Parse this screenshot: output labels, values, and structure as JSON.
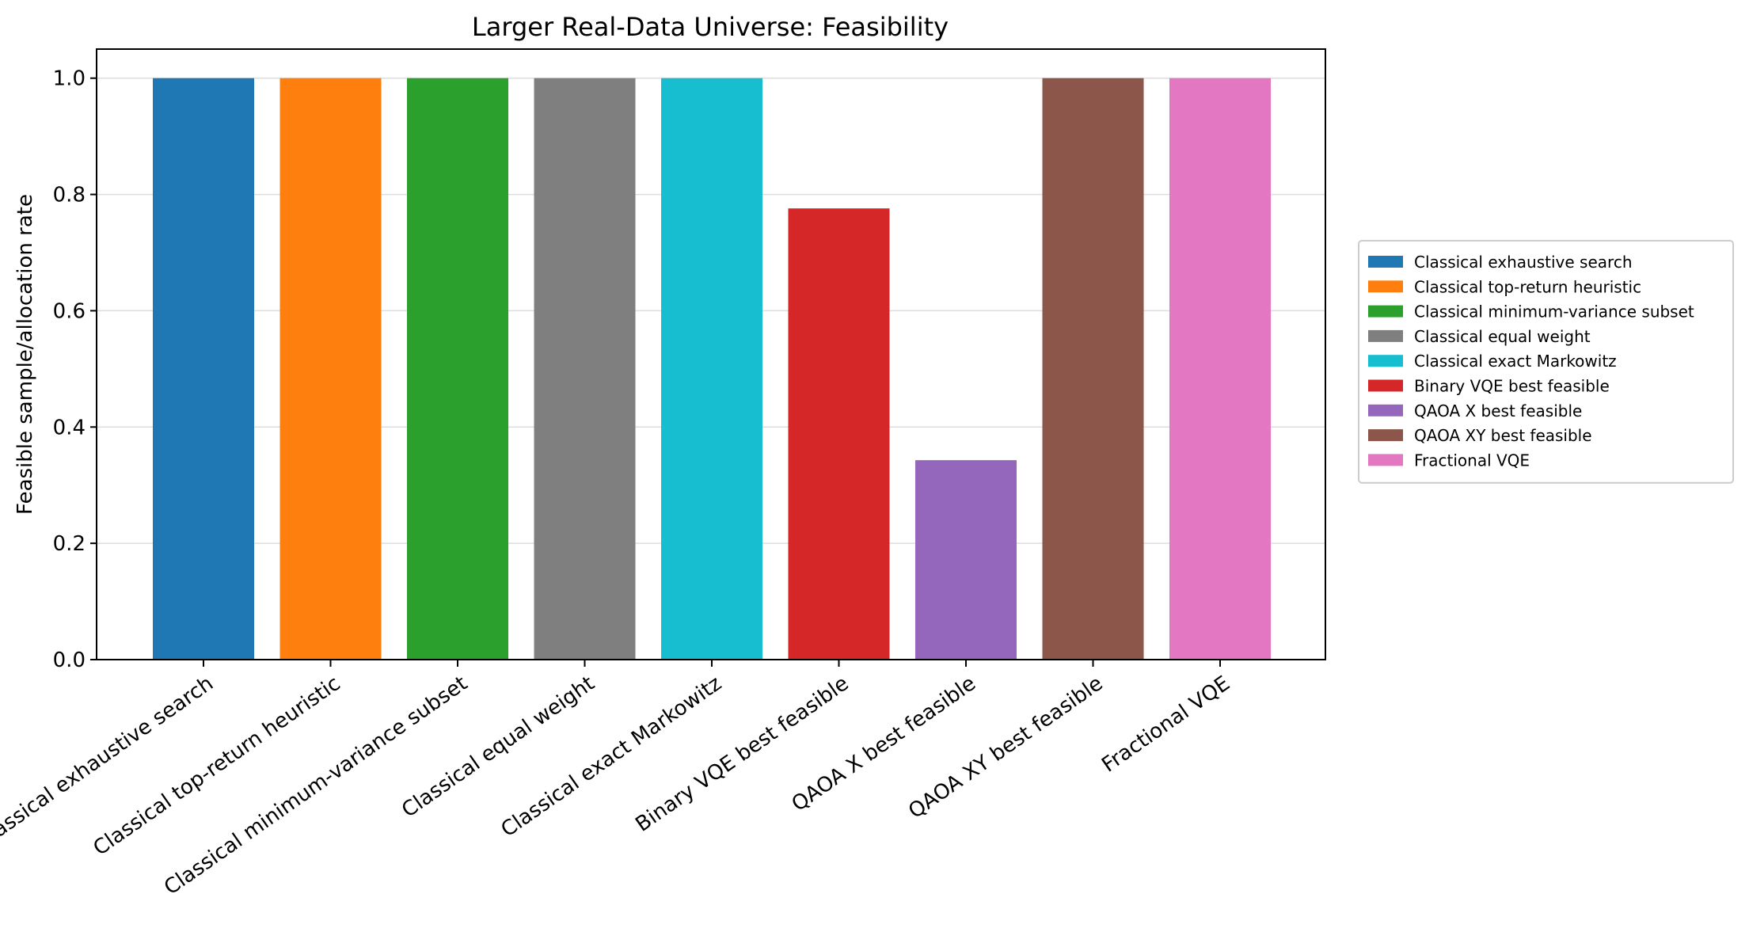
{
  "chart_data": {
    "type": "bar",
    "title": "Larger Real-Data Universe: Feasibility",
    "xlabel": "",
    "ylabel": "Feasible sample/allocation rate",
    "ylim": [
      0,
      1.05
    ],
    "yticks": [
      "0.0",
      "0.2",
      "0.4",
      "0.6",
      "0.8",
      "1.0"
    ],
    "ytick_values": [
      0,
      0.2,
      0.4,
      0.6,
      0.8,
      1.0
    ],
    "grid": "y",
    "legend_position": "right",
    "categories": [
      "Classical exhaustive search",
      "Classical top-return heuristic",
      "Classical minimum-variance subset",
      "Classical equal weight",
      "Classical exact Markowitz",
      "Binary VQE best feasible",
      "QAOA X best feasible",
      "QAOA XY best feasible",
      "Fractional VQE"
    ],
    "values": [
      1.0,
      1.0,
      1.0,
      1.0,
      1.0,
      0.776,
      0.343,
      1.0,
      1.0
    ],
    "colors": [
      "#1f77b4",
      "#ff7f0e",
      "#2ca02c",
      "#7f7f7f",
      "#17becf",
      "#d62728",
      "#9467bd",
      "#8c564b",
      "#e377c2"
    ]
  }
}
